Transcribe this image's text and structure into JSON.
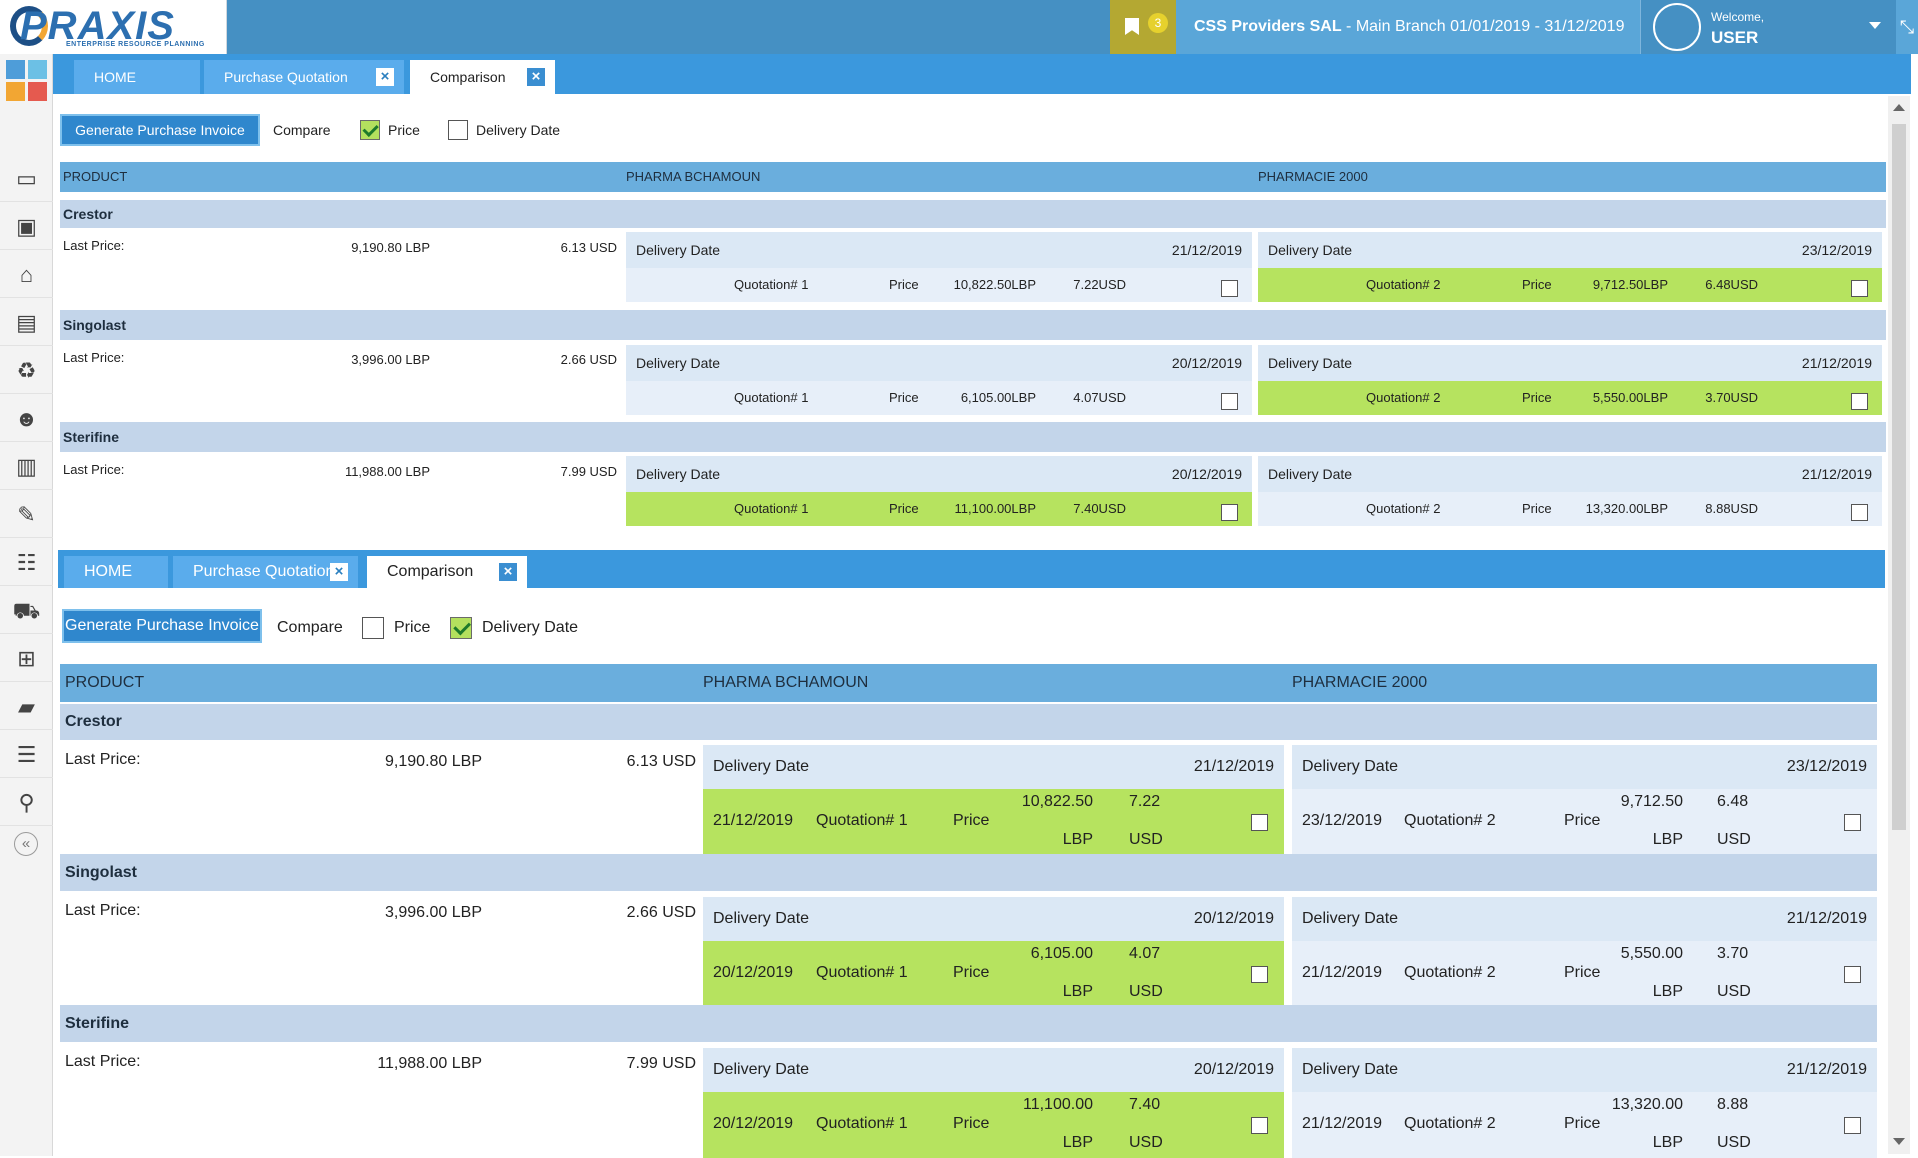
{
  "header": {
    "logo_text": "PRAXIS",
    "logo_tagline": "ENTERPRISE RESOURCE PLANNING",
    "notification_count": "3",
    "company_name": "CSS Providers SAL",
    "branch_period": " - Main Branch 01/01/2019 - 31/12/2019",
    "welcome": "Welcome,",
    "username": "USER"
  },
  "colors": {
    "top_bar": "#4590c3",
    "tab_strip": "#3b98dd",
    "best_quote": "#b6e35f",
    "product_row": "#c3d5ea",
    "header_row": "#6aaedd"
  },
  "rail_icons": [
    "monitor-icon",
    "money-icon",
    "home-icon",
    "card-icon",
    "recycle-icon",
    "users-icon",
    "building-icon",
    "wrench-icon",
    "org-chart-icon",
    "truck-icon",
    "cart-icon",
    "folder-icon",
    "document-icon",
    "location-icon"
  ],
  "views": [
    {
      "tabs": [
        {
          "label": "HOME"
        },
        {
          "label": "Purchase Quotation",
          "close": "×"
        },
        {
          "label": "Comparison",
          "close": "×"
        }
      ],
      "generate_button": "Generate Purchase Invoice",
      "compare_label": "Compare",
      "options": [
        {
          "label": "Price",
          "checked": true
        },
        {
          "label": "Delivery Date",
          "checked": false
        }
      ],
      "columns": [
        "PRODUCT",
        "PHARMA BCHAMOUN",
        "PHARMACIE 2000"
      ],
      "last_price_label": "Last Price:",
      "delivery_label": "Delivery Date",
      "price_label": "Price",
      "products": [
        {
          "name": "Crestor",
          "last_lbp": "9,190.80 LBP",
          "last_usd": "6.13 USD",
          "suppliers": [
            {
              "delivery": "21/12/2019",
              "quotation": "Quotation# 1",
              "lbp": "10,822.50LBP",
              "usd": "7.22USD",
              "best": false
            },
            {
              "delivery": "23/12/2019",
              "quotation": "Quotation# 2",
              "lbp": "9,712.50LBP",
              "usd": "6.48USD",
              "best": true
            }
          ]
        },
        {
          "name": "Singolast",
          "last_lbp": "3,996.00 LBP",
          "last_usd": "2.66 USD",
          "suppliers": [
            {
              "delivery": "20/12/2019",
              "quotation": "Quotation# 1",
              "lbp": "6,105.00LBP",
              "usd": "4.07USD",
              "best": false
            },
            {
              "delivery": "21/12/2019",
              "quotation": "Quotation# 2",
              "lbp": "5,550.00LBP",
              "usd": "3.70USD",
              "best": true
            }
          ]
        },
        {
          "name": "Sterifine",
          "last_lbp": "11,988.00 LBP",
          "last_usd": "7.99 USD",
          "suppliers": [
            {
              "delivery": "20/12/2019",
              "quotation": "Quotation# 1",
              "lbp": "11,100.00LBP",
              "usd": "7.40USD",
              "best": true
            },
            {
              "delivery": "21/12/2019",
              "quotation": "Quotation# 2",
              "lbp": "13,320.00LBP",
              "usd": "8.88USD",
              "best": false
            }
          ]
        }
      ]
    },
    {
      "tabs": [
        {
          "label": "HOME"
        },
        {
          "label": "Purchase Quotation",
          "close": "×"
        },
        {
          "label": "Comparison",
          "close": "×"
        }
      ],
      "generate_button": "Generate Purchase Invoice",
      "compare_label": "Compare",
      "options": [
        {
          "label": "Price",
          "checked": false
        },
        {
          "label": "Delivery Date",
          "checked": true
        }
      ],
      "columns": [
        "PRODUCT",
        "PHARMA BCHAMOUN",
        "PHARMACIE 2000"
      ],
      "last_price_label": "Last Price:",
      "delivery_label": "Delivery Date",
      "price_label": "Price",
      "products": [
        {
          "name": "Crestor",
          "last_lbp": "9,190.80 LBP",
          "last_usd": "6.13 USD",
          "suppliers": [
            {
              "delivery": "21/12/2019",
              "quotation": "Quotation# 1",
              "lbp_amount": "10,822.50",
              "lbp_unit": "LBP",
              "usd_amount": "7.22",
              "usd_unit": "USD",
              "best": true
            },
            {
              "delivery": "23/12/2019",
              "quotation": "Quotation# 2",
              "lbp_amount": "9,712.50",
              "lbp_unit": "LBP",
              "usd_amount": "6.48",
              "usd_unit": "USD",
              "best": false
            }
          ]
        },
        {
          "name": "Singolast",
          "last_lbp": "3,996.00 LBP",
          "last_usd": "2.66 USD",
          "suppliers": [
            {
              "delivery": "20/12/2019",
              "quotation": "Quotation# 1",
              "lbp_amount": "6,105.00",
              "lbp_unit": "LBP",
              "usd_amount": "4.07",
              "usd_unit": "USD",
              "best": true
            },
            {
              "delivery": "21/12/2019",
              "quotation": "Quotation# 2",
              "lbp_amount": "5,550.00",
              "lbp_unit": "LBP",
              "usd_amount": "3.70",
              "usd_unit": "USD",
              "best": false
            }
          ]
        },
        {
          "name": "Sterifine",
          "last_lbp": "11,988.00 LBP",
          "last_usd": "7.99 USD",
          "suppliers": [
            {
              "delivery": "20/12/2019",
              "quotation": "Quotation# 1",
              "lbp_amount": "11,100.00",
              "lbp_unit": "LBP",
              "usd_amount": "7.40",
              "usd_unit": "USD",
              "best": true
            },
            {
              "delivery": "21/12/2019",
              "quotation": "Quotation# 2",
              "lbp_amount": "13,320.00",
              "lbp_unit": "LBP",
              "usd_amount": "8.88",
              "usd_unit": "USD",
              "best": false
            }
          ]
        }
      ]
    }
  ]
}
